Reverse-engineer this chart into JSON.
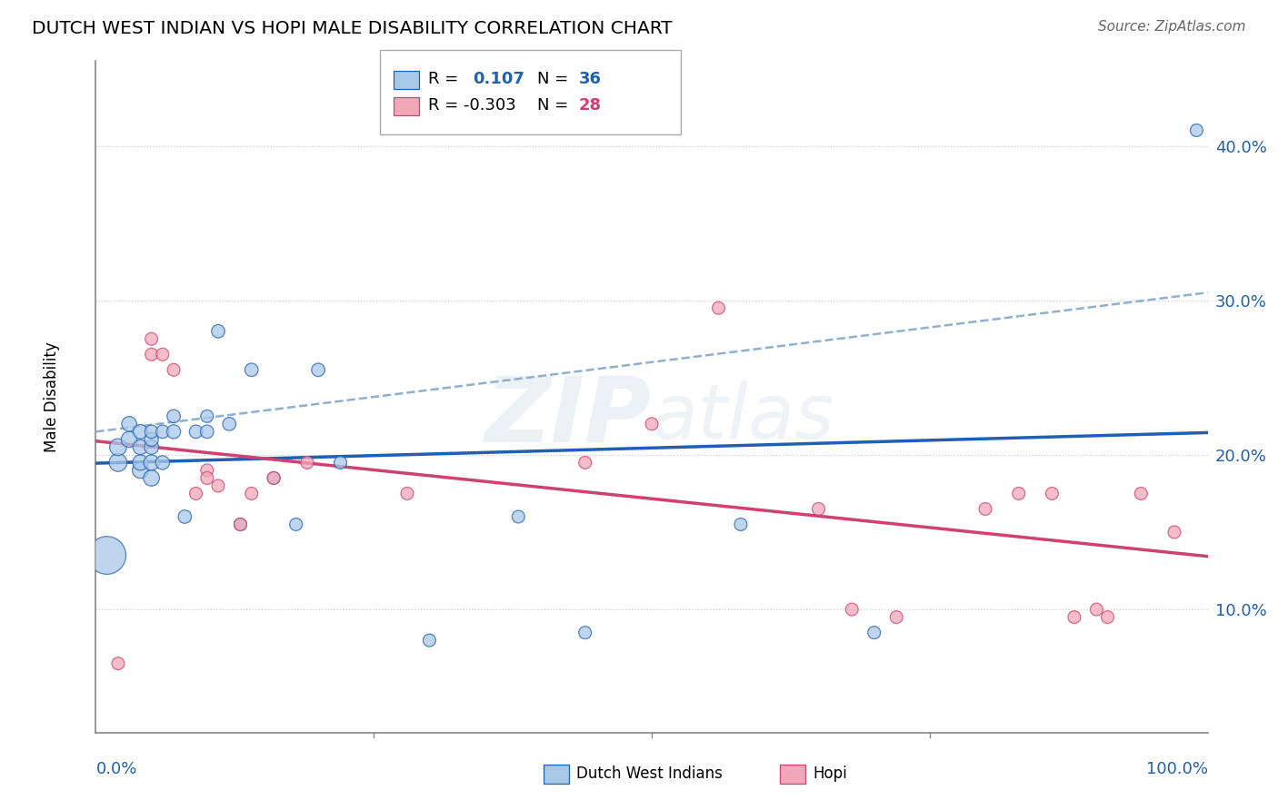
{
  "title": "DUTCH WEST INDIAN VS HOPI MALE DISABILITY CORRELATION CHART",
  "source": "Source: ZipAtlas.com",
  "ylabel": "Male Disability",
  "watermark_zip": "ZIP",
  "watermark_atlas": "atlas",
  "legend_label_blue": "Dutch West Indians",
  "legend_label_pink": "Hopi",
  "blue_color": "#A8C8E8",
  "pink_color": "#F0A8B8",
  "blue_line_color": "#2060B0",
  "pink_line_color": "#D04070",
  "gray_dash_color": "#90B0D0",
  "ytick_vals": [
    0.1,
    0.2,
    0.3,
    0.4
  ],
  "ylim": [
    0.02,
    0.455
  ],
  "xlim": [
    0.0,
    1.0
  ],
  "blue_x": [
    0.01,
    0.02,
    0.02,
    0.03,
    0.03,
    0.04,
    0.04,
    0.04,
    0.04,
    0.05,
    0.05,
    0.05,
    0.05,
    0.05,
    0.06,
    0.06,
    0.07,
    0.07,
    0.08,
    0.09,
    0.1,
    0.1,
    0.11,
    0.12,
    0.13,
    0.14,
    0.16,
    0.18,
    0.2,
    0.22,
    0.3,
    0.38,
    0.44,
    0.58,
    0.7,
    0.99
  ],
  "blue_y": [
    0.135,
    0.195,
    0.205,
    0.21,
    0.22,
    0.19,
    0.195,
    0.205,
    0.215,
    0.185,
    0.195,
    0.205,
    0.21,
    0.215,
    0.195,
    0.215,
    0.215,
    0.225,
    0.16,
    0.215,
    0.215,
    0.225,
    0.28,
    0.22,
    0.155,
    0.255,
    0.185,
    0.155,
    0.255,
    0.195,
    0.08,
    0.16,
    0.085,
    0.155,
    0.085,
    0.41
  ],
  "blue_sizes": [
    900,
    200,
    180,
    160,
    140,
    160,
    150,
    140,
    130,
    160,
    150,
    130,
    120,
    110,
    120,
    110,
    120,
    110,
    110,
    110,
    110,
    100,
    110,
    110,
    100,
    110,
    100,
    100,
    110,
    100,
    100,
    100,
    100,
    100,
    100,
    100
  ],
  "pink_x": [
    0.02,
    0.05,
    0.05,
    0.06,
    0.07,
    0.09,
    0.1,
    0.1,
    0.11,
    0.13,
    0.14,
    0.16,
    0.19,
    0.28,
    0.44,
    0.5,
    0.56,
    0.65,
    0.68,
    0.72,
    0.8,
    0.83,
    0.86,
    0.88,
    0.9,
    0.91,
    0.94,
    0.97
  ],
  "pink_y": [
    0.065,
    0.275,
    0.265,
    0.265,
    0.255,
    0.175,
    0.19,
    0.185,
    0.18,
    0.155,
    0.175,
    0.185,
    0.195,
    0.175,
    0.195,
    0.22,
    0.295,
    0.165,
    0.1,
    0.095,
    0.165,
    0.175,
    0.175,
    0.095,
    0.1,
    0.095,
    0.175,
    0.15
  ],
  "pink_sizes": [
    100,
    100,
    100,
    100,
    100,
    100,
    100,
    100,
    100,
    100,
    100,
    100,
    100,
    100,
    100,
    100,
    100,
    100,
    100,
    100,
    100,
    100,
    100,
    100,
    100,
    100,
    100,
    100
  ],
  "blue_r": 0.107,
  "blue_n": 36,
  "pink_r": -0.303,
  "pink_n": 28
}
